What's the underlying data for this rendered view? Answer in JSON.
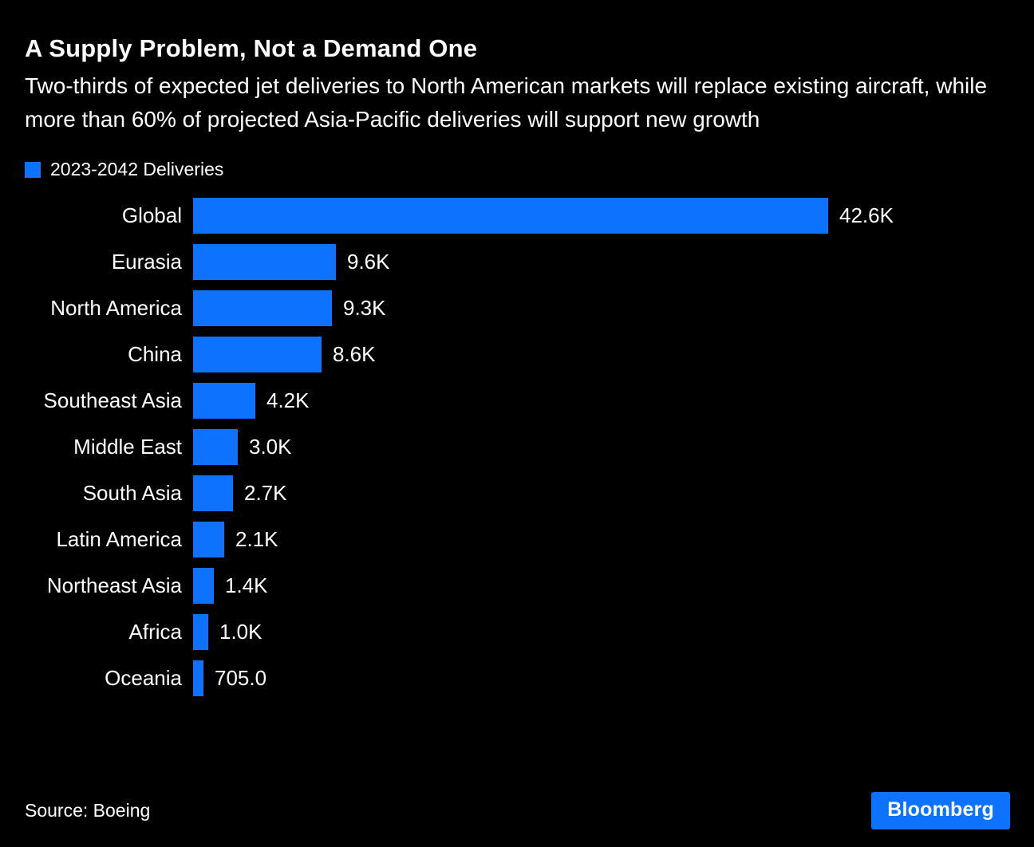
{
  "header": {
    "title": "A Supply Problem, Not a Demand One",
    "subtitle": "Two-thirds of expected jet deliveries to North American markets will replace existing aircraft, while more than 60% of projected Asia-Pacific deliveries will support new growth"
  },
  "legend": {
    "label": "2023-2042 Deliveries"
  },
  "colors": {
    "accent": "#0d73ff",
    "background": "#000000",
    "text": "#ffffff"
  },
  "chart_data": {
    "type": "bar",
    "orientation": "horizontal",
    "title": "A Supply Problem, Not a Demand One",
    "series_name": "2023-2042 Deliveries",
    "categories": [
      "Global",
      "Eurasia",
      "North America",
      "China",
      "Southeast Asia",
      "Middle East",
      "South Asia",
      "Latin America",
      "Northeast Asia",
      "Africa",
      "Oceania"
    ],
    "values": [
      42600,
      9600,
      9300,
      8600,
      4200,
      3000,
      2700,
      2100,
      1400,
      1000,
      705
    ],
    "display_values": [
      "42.6K",
      "9.6K",
      "9.3K",
      "8.6K",
      "4.2K",
      "3.0K",
      "2.7K",
      "2.1K",
      "1.4K",
      "1.0K",
      "705.0"
    ],
    "xlim": [
      0,
      42600
    ],
    "grid": false,
    "legend_position": "top-left",
    "bar_color": "#0d73ff"
  },
  "footer": {
    "source": "Source: Boeing",
    "brand": "Bloomberg"
  }
}
